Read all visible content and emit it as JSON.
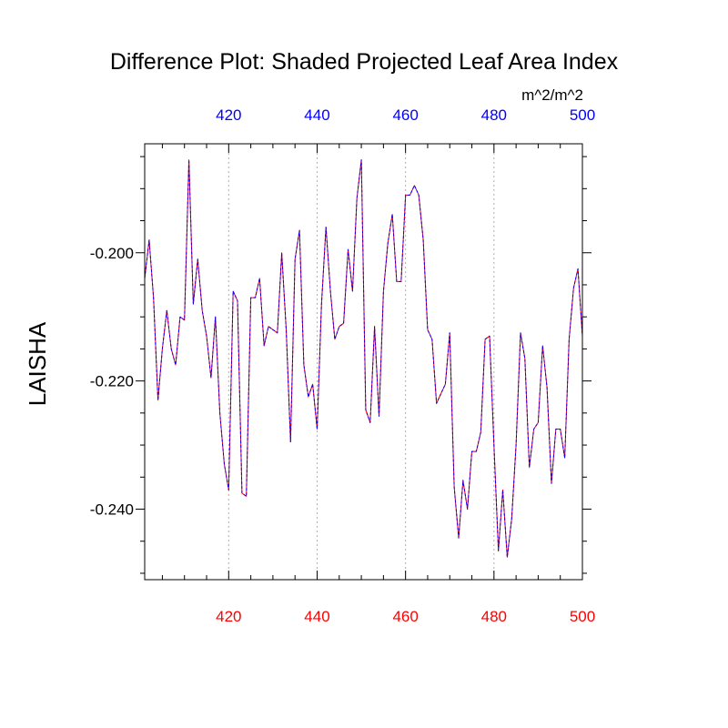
{
  "chart_data": {
    "type": "line",
    "title": "Difference Plot: Shaded Projected Leaf Area Index",
    "units_label": "m^2/m^2",
    "ylabel": "LAISHA",
    "xlim": [
      401,
      500
    ],
    "ylim": [
      -0.251,
      -0.183
    ],
    "x_ticks": [
      420,
      440,
      460,
      480,
      500
    ],
    "x_tick_labels": [
      "420",
      "440",
      "460",
      "480",
      "500"
    ],
    "y_ticks": [
      -0.2,
      -0.22,
      -0.24
    ],
    "y_tick_labels": [
      "-0.200",
      "-0.220",
      "-0.240"
    ],
    "grid": "dotted vertical lines at x ticks",
    "colors": {
      "bottom_axis_labels": "#ff0000",
      "top_axis_labels": "#0000ff",
      "series_1": "#ff0000",
      "series_2": "#0000ff"
    },
    "x": [
      401,
      402,
      403,
      404,
      405,
      406,
      407,
      408,
      409,
      410,
      411,
      412,
      413,
      414,
      415,
      416,
      417,
      418,
      419,
      420,
      421,
      422,
      423,
      424,
      425,
      426,
      427,
      428,
      429,
      430,
      431,
      432,
      433,
      434,
      435,
      436,
      437,
      438,
      439,
      440,
      441,
      442,
      443,
      444,
      445,
      446,
      447,
      448,
      449,
      450,
      451,
      452,
      453,
      454,
      455,
      456,
      457,
      458,
      459,
      460,
      461,
      462,
      463,
      464,
      465,
      466,
      467,
      468,
      469,
      470,
      471,
      472,
      473,
      474,
      475,
      476,
      477,
      478,
      479,
      480,
      481,
      482,
      483,
      484,
      485,
      486,
      487,
      488,
      489,
      490,
      491,
      492,
      493,
      494,
      495,
      496,
      497,
      498,
      499,
      500
    ],
    "series": [
      {
        "values": [
          -0.204,
          -0.198,
          -0.207,
          -0.223,
          -0.215,
          -0.209,
          -0.215,
          -0.2175,
          -0.21,
          -0.2105,
          -0.1855,
          -0.208,
          -0.201,
          -0.209,
          -0.213,
          -0.2195,
          -0.21,
          -0.225,
          -0.233,
          -0.237,
          -0.206,
          -0.2075,
          -0.2375,
          -0.238,
          -0.207,
          -0.207,
          -0.204,
          -0.2145,
          -0.2115,
          -0.212,
          -0.2125,
          -0.2,
          -0.212,
          -0.2295,
          -0.201,
          -0.1965,
          -0.2175,
          -0.2225,
          -0.2205,
          -0.2275,
          -0.208,
          -0.196,
          -0.206,
          -0.2135,
          -0.2115,
          -0.211,
          -0.1995,
          -0.206,
          -0.1915,
          -0.1855,
          -0.2245,
          -0.2265,
          -0.2115,
          -0.2255,
          -0.206,
          -0.1985,
          -0.194,
          -0.2045,
          -0.2045,
          -0.191,
          -0.191,
          -0.1895,
          -0.191,
          -0.198,
          -0.212,
          -0.2135,
          -0.2235,
          -0.222,
          -0.2205,
          -0.2125,
          -0.2365,
          -0.2445,
          -0.2355,
          -0.24,
          -0.231,
          -0.231,
          -0.228,
          -0.2135,
          -0.213,
          -0.23,
          -0.2465,
          -0.237,
          -0.2475,
          -0.2415,
          -0.23,
          -0.2125,
          -0.2165,
          -0.2335,
          -0.2275,
          -0.2265,
          -0.2145,
          -0.221,
          -0.236,
          -0.2275,
          -0.2275,
          -0.232,
          -0.2135,
          -0.2055,
          -0.2025,
          -0.213
        ]
      },
      {
        "values": [
          -0.204,
          -0.198,
          -0.207,
          -0.223,
          -0.215,
          -0.209,
          -0.215,
          -0.2175,
          -0.21,
          -0.2105,
          -0.1855,
          -0.208,
          -0.201,
          -0.209,
          -0.213,
          -0.2195,
          -0.21,
          -0.225,
          -0.233,
          -0.237,
          -0.206,
          -0.2075,
          -0.2375,
          -0.238,
          -0.207,
          -0.207,
          -0.204,
          -0.2145,
          -0.2115,
          -0.212,
          -0.2125,
          -0.2,
          -0.212,
          -0.2295,
          -0.201,
          -0.1965,
          -0.2175,
          -0.2225,
          -0.2205,
          -0.2275,
          -0.208,
          -0.196,
          -0.206,
          -0.2135,
          -0.2115,
          -0.211,
          -0.1995,
          -0.206,
          -0.1915,
          -0.1855,
          -0.2245,
          -0.2265,
          -0.2115,
          -0.2255,
          -0.206,
          -0.1985,
          -0.194,
          -0.2045,
          -0.2045,
          -0.191,
          -0.191,
          -0.1895,
          -0.191,
          -0.198,
          -0.212,
          -0.2135,
          -0.2235,
          -0.222,
          -0.2205,
          -0.2125,
          -0.2365,
          -0.2445,
          -0.2355,
          -0.24,
          -0.231,
          -0.231,
          -0.228,
          -0.2135,
          -0.213,
          -0.23,
          -0.2465,
          -0.237,
          -0.2475,
          -0.2415,
          -0.23,
          -0.2125,
          -0.2165,
          -0.2335,
          -0.2275,
          -0.2265,
          -0.2145,
          -0.221,
          -0.236,
          -0.2275,
          -0.2275,
          -0.232,
          -0.2135,
          -0.2055,
          -0.2025,
          -0.213
        ]
      }
    ]
  }
}
